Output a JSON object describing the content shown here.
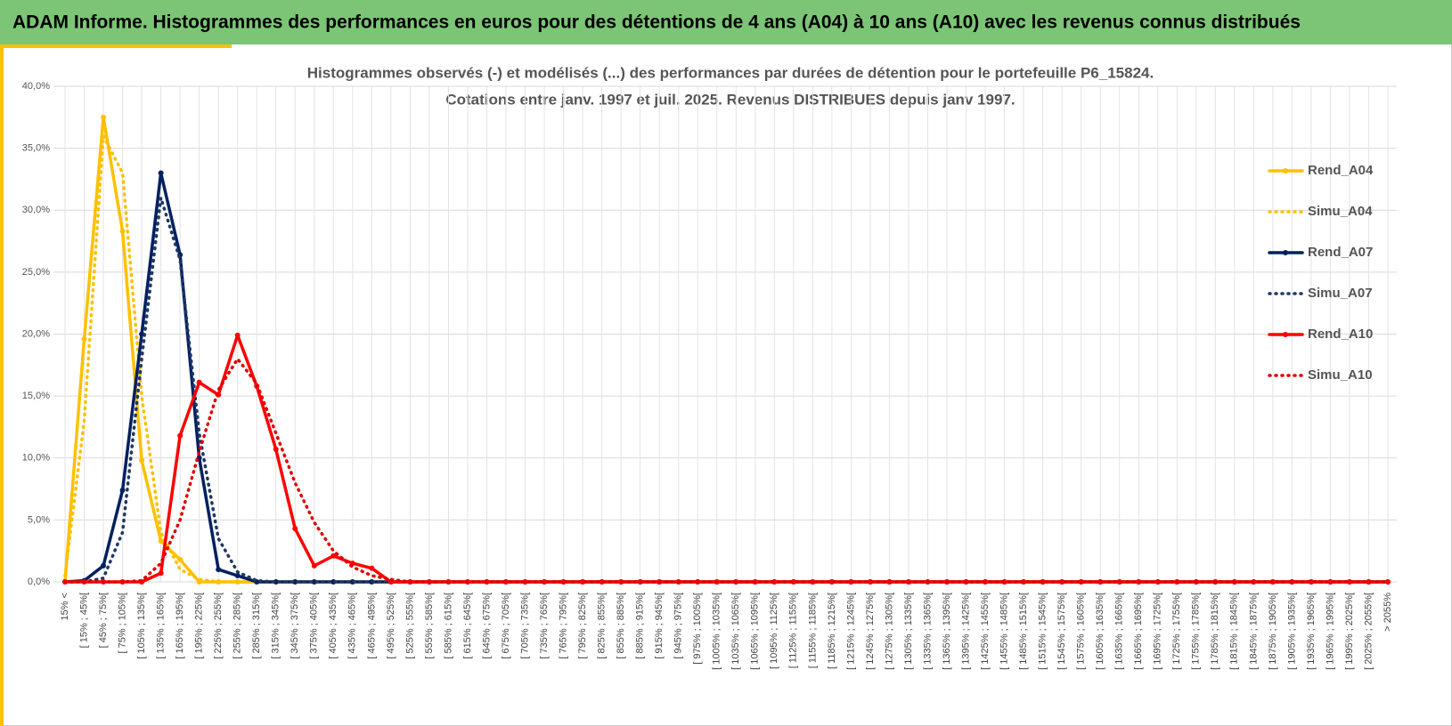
{
  "header": {
    "title": "ADAM Informe. Histogrammes des performances en euros pour des détentions de 4 ans (A04) à 10 ans (A10) avec les revenus connus distribués"
  },
  "chart_data": {
    "type": "line",
    "title": [
      "Histogrammes observés (-) et modélisés (...) des performances par durées de détention pour le portefeuille P6_15824.",
      "Cotations entre janv. 1997 et juil. 2025. Revenus DISTRIBUES depuis janv 1997."
    ],
    "categories": [
      "15% <",
      "[ 15% ; 45%[",
      "[ 45% ; 75%[",
      "[ 75% ; 105%[",
      "[ 105% ; 135%[",
      "[ 135% ; 165%[",
      "[ 165% ; 195%[",
      "[ 195% ; 225%[",
      "[ 225% ; 255%[",
      "[ 255% ; 285%[",
      "[ 285% ; 315%[",
      "[ 315% ; 345%[",
      "[ 345% ; 375%[",
      "[ 375% ; 405%[",
      "[ 405% ; 435%[",
      "[ 435% ; 465%[",
      "[ 465% ; 495%[",
      "[ 495% ; 525%[",
      "[ 525% ; 555%[",
      "[ 555% ; 585%[",
      "[ 585% ; 615%[",
      "[ 615% ; 645%[",
      "[ 645% ; 675%[",
      "[ 675% ; 705%[",
      "[ 705% ; 735%[",
      "[ 735% ; 765%[",
      "[ 765% ; 795%[",
      "[ 795% ; 825%[",
      "[ 825% ; 855%[",
      "[ 855% ; 885%[",
      "[ 885% ; 915%[",
      "[ 915% ; 945%[",
      "[ 945% ; 975%[",
      "[ 975% ; 1005%[",
      "[ 1005% ; 1035%[",
      "[ 1035% ; 1065%[",
      "[ 1065% ; 1095%[",
      "[ 1095% ; 1125%[",
      "[ 1125% ; 1155%[",
      "[ 1155% ; 1185%[",
      "[ 1185% ; 1215%[",
      "[ 1215% ; 1245%[",
      "[ 1245% ; 1275%[",
      "[ 1275% ; 1305%[",
      "[ 1305% ; 1335%[",
      "[ 1335% ; 1365%[",
      "[ 1365% ; 1395%[",
      "[ 1395% ; 1425%[",
      "[ 1425% ; 1455%[",
      "[ 1455% ; 1485%[",
      "[ 1485% ; 1515%[",
      "[ 1515% ; 1545%[",
      "[ 1545% ; 1575%[",
      "[ 1575% ; 1605%[",
      "[ 1605% ; 1635%[",
      "[ 1635% ; 1665%[",
      "[ 1665% ; 1695%[",
      "[ 1695% ; 1725%[",
      "[ 1725% ; 1755%[",
      "[ 1755% ; 1785%[",
      "[ 1785% ; 1815%[",
      "[ 1815% ; 1845%[",
      "[ 1845% ; 1875%[",
      "[ 1875% ; 1905%[",
      "[ 1905% ; 1935%[",
      "[ 1935% ; 1965%[",
      "[ 1965% ; 1995%[",
      "[ 1995% ; 2025%[",
      "[ 2025% ; 2055%[",
      "> 2055%"
    ],
    "series": [
      {
        "name": "Rend_A04",
        "color": "#ffc000",
        "dotted": false,
        "values": [
          0,
          19.6,
          37.5,
          28.3,
          9.8,
          3.3,
          1.8,
          0,
          0,
          0,
          0,
          0,
          0,
          0,
          0,
          0,
          0,
          0,
          0,
          0,
          0,
          0,
          0,
          0,
          0,
          0,
          0,
          0,
          0,
          0,
          0,
          0,
          0,
          0,
          0,
          0,
          0,
          0,
          0,
          0,
          0,
          0,
          0,
          0,
          0,
          0,
          0,
          0,
          0,
          0,
          0,
          0,
          0,
          0,
          0,
          0,
          0,
          0,
          0,
          0,
          0,
          0,
          0,
          0,
          0,
          0,
          0,
          0,
          0,
          0
        ]
      },
      {
        "name": "Simu_A04",
        "color": "#ffc000",
        "dotted": true,
        "values": [
          0.5,
          13,
          36,
          33,
          15,
          4,
          1,
          0.2,
          0,
          0,
          0,
          0,
          0,
          0,
          0,
          0,
          0,
          0,
          0,
          0,
          0,
          0,
          0,
          0,
          0,
          0,
          0,
          0,
          0,
          0,
          0,
          0,
          0,
          0,
          0,
          0,
          0,
          0,
          0,
          0,
          0,
          0,
          0,
          0,
          0,
          0,
          0,
          0,
          0,
          0,
          0,
          0,
          0,
          0,
          0,
          0,
          0,
          0,
          0,
          0,
          0,
          0,
          0,
          0,
          0,
          0,
          0,
          0,
          0,
          0
        ]
      },
      {
        "name": "Rend_A07",
        "color": "#002060",
        "dotted": false,
        "values": [
          0,
          0.1,
          1.3,
          7.4,
          20,
          33,
          26.4,
          10,
          1,
          0.5,
          0,
          0,
          0,
          0,
          0,
          0,
          0,
          0,
          0,
          0,
          0,
          0,
          0,
          0,
          0,
          0,
          0,
          0,
          0,
          0,
          0,
          0,
          0,
          0,
          0,
          0,
          0,
          0,
          0,
          0,
          0,
          0,
          0,
          0,
          0,
          0,
          0,
          0,
          0,
          0,
          0,
          0,
          0,
          0,
          0,
          0,
          0,
          0,
          0,
          0,
          0,
          0,
          0,
          0,
          0,
          0,
          0,
          0,
          0,
          0
        ]
      },
      {
        "name": "Simu_A07",
        "color": "#1f3864",
        "dotted": true,
        "values": [
          0,
          0,
          0.3,
          4,
          18,
          31,
          26,
          12,
          3.5,
          0.8,
          0.1,
          0,
          0,
          0,
          0,
          0,
          0,
          0,
          0,
          0,
          0,
          0,
          0,
          0,
          0,
          0,
          0,
          0,
          0,
          0,
          0,
          0,
          0,
          0,
          0,
          0,
          0,
          0,
          0,
          0,
          0,
          0,
          0,
          0,
          0,
          0,
          0,
          0,
          0,
          0,
          0,
          0,
          0,
          0,
          0,
          0,
          0,
          0,
          0,
          0,
          0,
          0,
          0,
          0,
          0,
          0,
          0,
          0,
          0,
          0
        ]
      },
      {
        "name": "Rend_A10",
        "color": "#ff0000",
        "dotted": false,
        "values": [
          0,
          0,
          0,
          0,
          0,
          0.7,
          11.8,
          16.1,
          15.1,
          19.9,
          15.8,
          10.7,
          4.3,
          1.3,
          2.1,
          1.5,
          1.1,
          0,
          0,
          0,
          0,
          0,
          0,
          0,
          0,
          0,
          0,
          0,
          0,
          0,
          0,
          0,
          0,
          0,
          0,
          0,
          0,
          0,
          0,
          0,
          0,
          0,
          0,
          0,
          0,
          0,
          0,
          0,
          0,
          0,
          0,
          0,
          0,
          0,
          0,
          0,
          0,
          0,
          0,
          0,
          0,
          0,
          0,
          0,
          0,
          0,
          0,
          0,
          0,
          0
        ]
      },
      {
        "name": "Simu_A10",
        "color": "#e00000",
        "dotted": true,
        "values": [
          0,
          0,
          0,
          0,
          0.1,
          1.5,
          5,
          10.5,
          15.5,
          18,
          16,
          12,
          8,
          4.8,
          2.5,
          1.2,
          0.5,
          0.2,
          0,
          0,
          0,
          0,
          0,
          0,
          0,
          0,
          0,
          0,
          0,
          0,
          0,
          0,
          0,
          0,
          0,
          0,
          0,
          0,
          0,
          0,
          0,
          0,
          0,
          0,
          0,
          0,
          0,
          0,
          0,
          0,
          0,
          0,
          0,
          0,
          0,
          0,
          0,
          0,
          0,
          0,
          0,
          0,
          0,
          0,
          0,
          0,
          0,
          0,
          0,
          0
        ]
      }
    ],
    "ylim": [
      0,
      40
    ],
    "yticks": [
      {
        "value": 0,
        "label": "0,0%"
      },
      {
        "value": 5,
        "label": "5,0%"
      },
      {
        "value": 10,
        "label": "10,0%"
      },
      {
        "value": 15,
        "label": "15,0%"
      },
      {
        "value": 20,
        "label": "20,0%"
      },
      {
        "value": 25,
        "label": "25,0%"
      },
      {
        "value": 30,
        "label": "30,0%"
      },
      {
        "value": 35,
        "label": "35,0%"
      },
      {
        "value": 40,
        "label": "40,0%"
      }
    ],
    "grid": true,
    "legend": "right"
  }
}
